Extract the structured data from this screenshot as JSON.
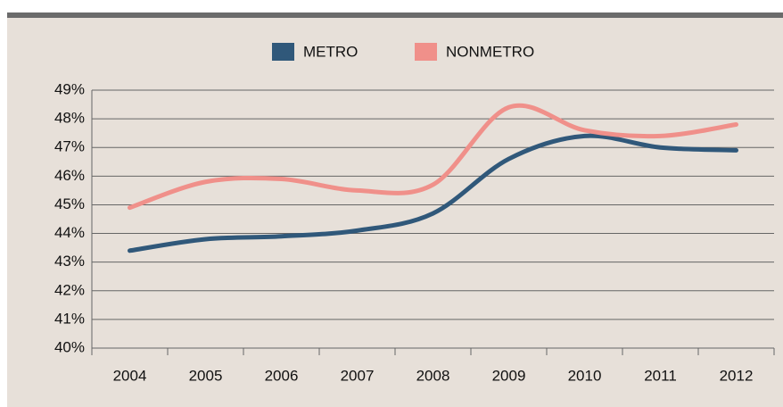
{
  "chart_data": {
    "type": "line",
    "categories": [
      "2004",
      "2005",
      "2006",
      "2007",
      "2008",
      "2009",
      "2010",
      "2011",
      "2012"
    ],
    "series": [
      {
        "name": "METRO",
        "color": "#30587a",
        "values": [
          43.4,
          43.8,
          43.9,
          44.1,
          44.7,
          46.6,
          47.4,
          47.0,
          46.9
        ]
      },
      {
        "name": "NONMETRO",
        "color": "#f0908a",
        "values": [
          44.9,
          45.8,
          45.9,
          45.5,
          45.7,
          48.4,
          47.6,
          47.4,
          47.8
        ]
      }
    ],
    "ylim": [
      40,
      49
    ],
    "yticks": [
      {
        "value": 40,
        "label": "40%"
      },
      {
        "value": 41,
        "label": "41%"
      },
      {
        "value": 42,
        "label": "42%"
      },
      {
        "value": 43,
        "label": "43%"
      },
      {
        "value": 44,
        "label": "44%"
      },
      {
        "value": 45,
        "label": "45%"
      },
      {
        "value": 46,
        "label": "46%"
      },
      {
        "value": 47,
        "label": "47%"
      },
      {
        "value": 48,
        "label": "48%"
      },
      {
        "value": 49,
        "label": "49%"
      }
    ],
    "grid": true
  }
}
